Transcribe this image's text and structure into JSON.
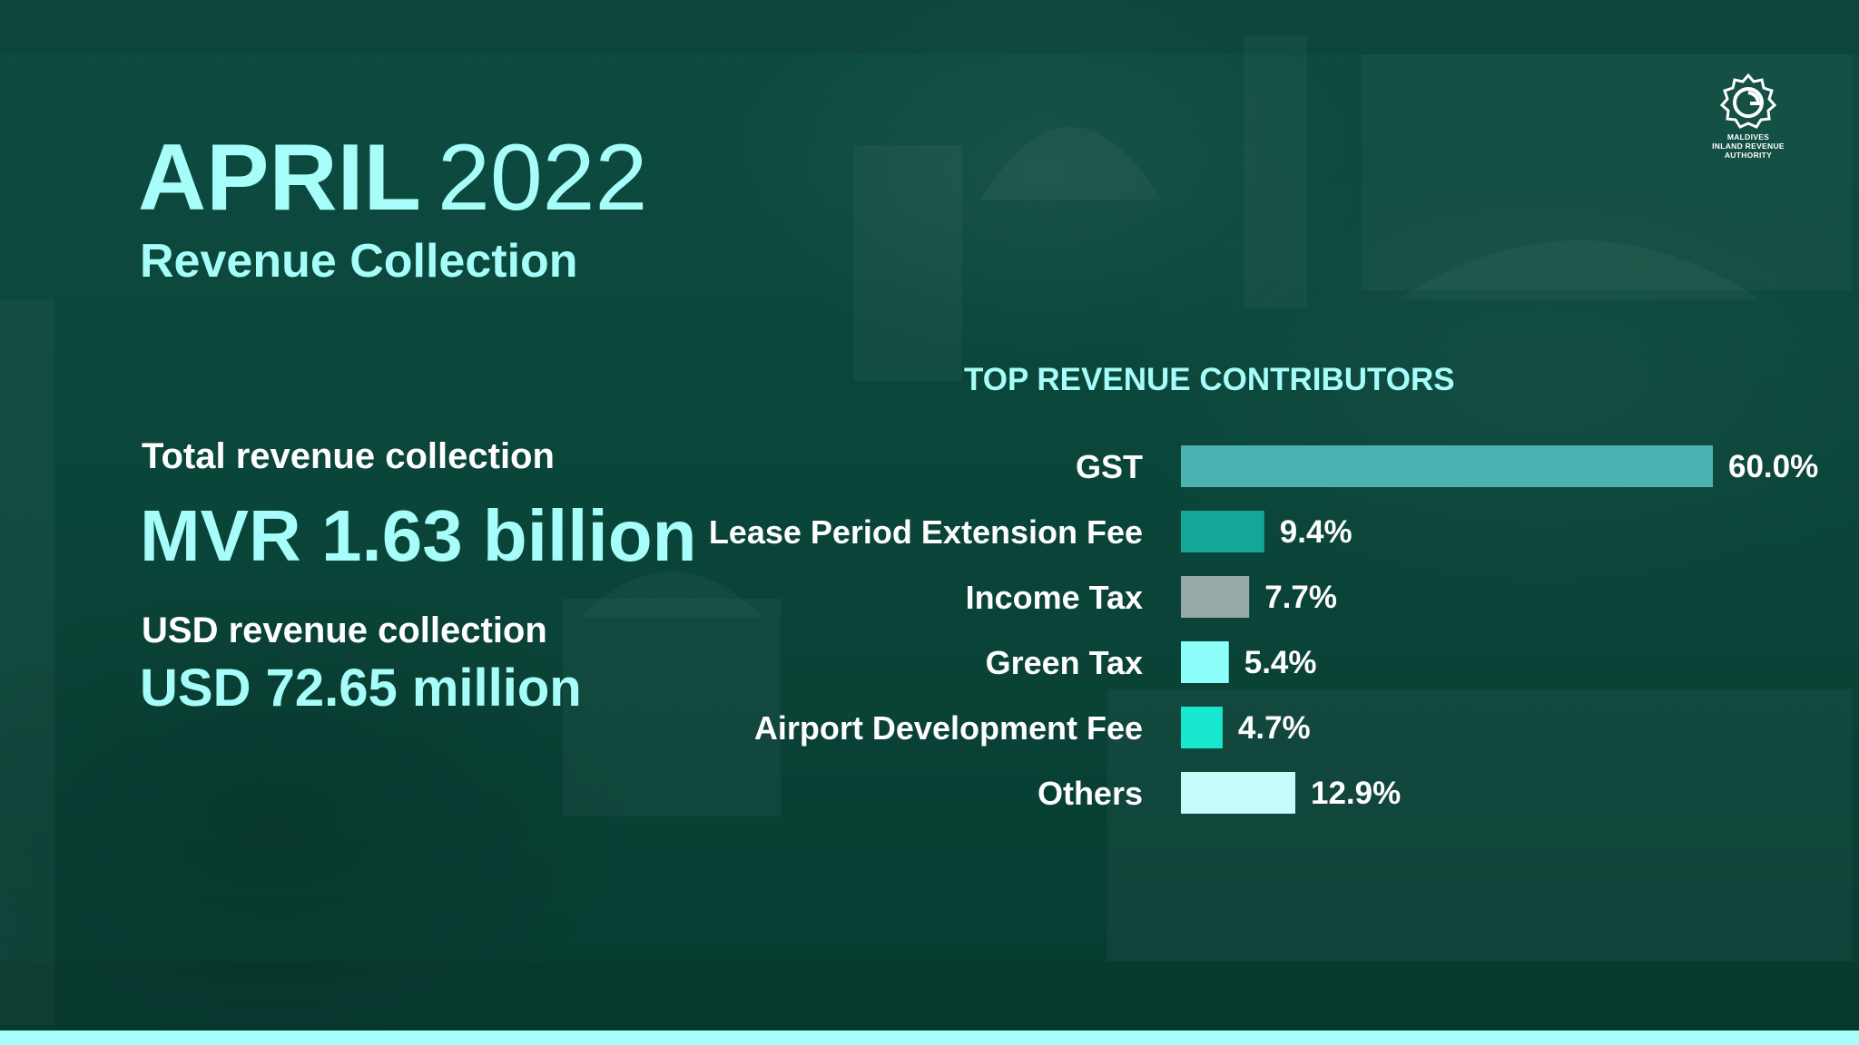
{
  "colors": {
    "background": "#0c4a3e",
    "accent": "#a6fdf9",
    "text": "#ffffff",
    "bottom_bar": "#a6fdf9"
  },
  "logo": {
    "icon": "miras-emblem-icon",
    "lines": [
      "MALDIVES",
      "INLAND REVENUE",
      "AUTHORITY"
    ]
  },
  "header": {
    "month": "APRIL",
    "year": "2022",
    "subtitle": "Revenue Collection"
  },
  "stats": {
    "total_label": "Total revenue collection",
    "total_value": "MVR 1.63 billion",
    "usd_label": "USD revenue collection",
    "usd_value": "USD 72.65 million"
  },
  "chart_data": {
    "type": "bar",
    "orientation": "horizontal",
    "title": "TOP REVENUE CONTRIBUTORS",
    "xlabel": "",
    "ylabel": "",
    "xlim": [
      0,
      60
    ],
    "grid": false,
    "categories": [
      "GST",
      "Lease Period Extension Fee",
      "Income Tax",
      "Green Tax",
      "Airport Development Fee",
      "Others"
    ],
    "values": [
      60.0,
      9.4,
      7.7,
      5.4,
      4.7,
      12.9
    ],
    "value_labels": [
      "60.0%",
      "9.4%",
      "7.7%",
      "5.4%",
      "4.7%",
      "12.9%"
    ],
    "bar_colors": [
      "#4ab3b1",
      "#14a797",
      "#97aaa8",
      "#8dfffb",
      "#19e8d0",
      "#c4fdfb"
    ]
  }
}
